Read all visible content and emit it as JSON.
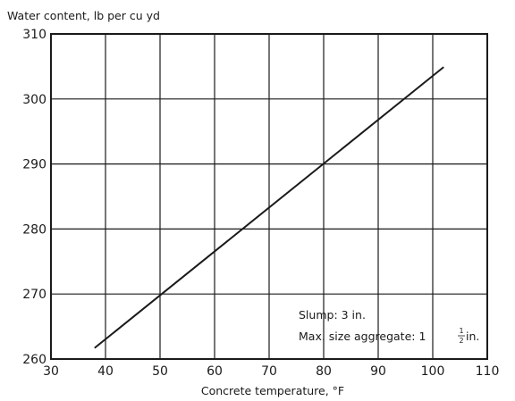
{
  "chart_data": {
    "type": "line",
    "title": "",
    "xlabel": "Concrete temperature, °F",
    "ylabel": "Water content, lb per cu yd",
    "xlim": [
      30,
      110
    ],
    "ylim": [
      260,
      310
    ],
    "x_ticks": [
      "30",
      "40",
      "50",
      "60",
      "70",
      "80",
      "90",
      "100",
      "110"
    ],
    "y_ticks": [
      "260",
      "270",
      "280",
      "290",
      "300",
      "310"
    ],
    "grid": true,
    "legend": "none",
    "series": [
      {
        "x": [
          38,
          102
        ],
        "y": [
          261.7,
          304.9
        ]
      }
    ],
    "annotations": [
      {
        "text": "Slump: 3 in."
      },
      {
        "text": "Max. size aggregate: 1",
        "fraction_num": "1",
        "fraction_den": "2",
        "suffix": " in."
      }
    ]
  }
}
